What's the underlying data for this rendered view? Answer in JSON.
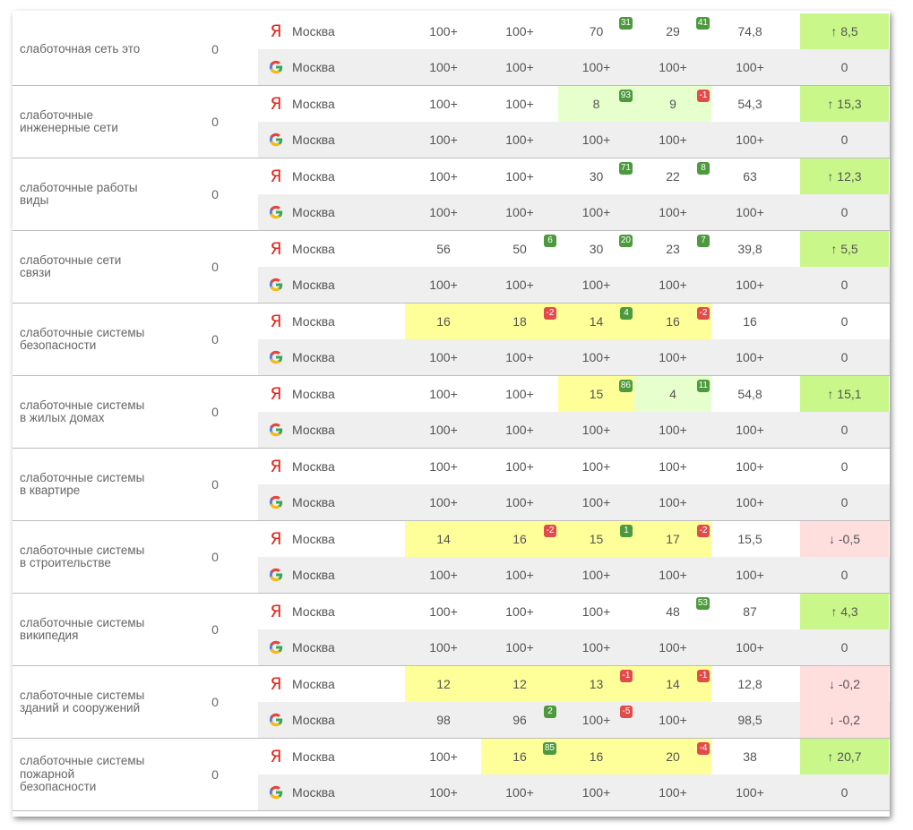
{
  "colors": {
    "yandex_red": "#e8231a",
    "highlight_yellow": "#ffff99",
    "highlight_light_green": "#e6ffcc",
    "delta_green": "#c9f78a",
    "delta_red": "#ffdede",
    "badge_positive": "#4c9a3d",
    "badge_negative": "#e24b4b"
  },
  "icons": {
    "yandex": "yandex-logo-icon",
    "google": "google-logo-icon"
  },
  "groups": [
    {
      "keyword": "слаботочная сеть это",
      "zero": "0",
      "yandex": {
        "city": "Москва",
        "cells": [
          {
            "v": "100+"
          },
          {
            "v": "100+"
          },
          {
            "v": "70",
            "badge": "31",
            "bt": "pos"
          },
          {
            "v": "29",
            "badge": "41",
            "bt": "pos"
          },
          {
            "v": "74,8"
          }
        ],
        "delta": "↑ 8,5",
        "delta_type": "up"
      },
      "google": {
        "city": "Москва",
        "cells": [
          {
            "v": "100+"
          },
          {
            "v": "100+"
          },
          {
            "v": "100+"
          },
          {
            "v": "100+"
          },
          {
            "v": "100+"
          }
        ],
        "delta": "0",
        "delta_type": "none"
      }
    },
    {
      "keyword": "слаботочные\nинженерные сети",
      "zero": "0",
      "yandex": {
        "city": "Москва",
        "cells": [
          {
            "v": "100+"
          },
          {
            "v": "100+"
          },
          {
            "v": "8",
            "badge": "93",
            "bt": "pos",
            "hl": "lg"
          },
          {
            "v": "9",
            "badge": "-1",
            "bt": "neg",
            "hl": "lg"
          },
          {
            "v": "54,3"
          }
        ],
        "delta": "↑ 15,3",
        "delta_type": "up"
      },
      "google": {
        "city": "Москва",
        "cells": [
          {
            "v": "100+"
          },
          {
            "v": "100+"
          },
          {
            "v": "100+"
          },
          {
            "v": "100+"
          },
          {
            "v": "100+"
          }
        ],
        "delta": "0",
        "delta_type": "none"
      }
    },
    {
      "keyword": "слаботочные работы\nвиды",
      "zero": "0",
      "yandex": {
        "city": "Москва",
        "cells": [
          {
            "v": "100+"
          },
          {
            "v": "100+"
          },
          {
            "v": "30",
            "badge": "71",
            "bt": "pos"
          },
          {
            "v": "22",
            "badge": "8",
            "bt": "pos"
          },
          {
            "v": "63"
          }
        ],
        "delta": "↑ 12,3",
        "delta_type": "up"
      },
      "google": {
        "city": "Москва",
        "cells": [
          {
            "v": "100+"
          },
          {
            "v": "100+"
          },
          {
            "v": "100+"
          },
          {
            "v": "100+"
          },
          {
            "v": "100+"
          }
        ],
        "delta": "0",
        "delta_type": "none"
      }
    },
    {
      "keyword": "слаботочные сети\nсвязи",
      "zero": "0",
      "yandex": {
        "city": "Москва",
        "cells": [
          {
            "v": "56"
          },
          {
            "v": "50",
            "badge": "6",
            "bt": "pos"
          },
          {
            "v": "30",
            "badge": "20",
            "bt": "pos"
          },
          {
            "v": "23",
            "badge": "7",
            "bt": "pos"
          },
          {
            "v": "39,8"
          }
        ],
        "delta": "↑ 5,5",
        "delta_type": "up"
      },
      "google": {
        "city": "Москва",
        "cells": [
          {
            "v": "100+"
          },
          {
            "v": "100+"
          },
          {
            "v": "100+"
          },
          {
            "v": "100+"
          },
          {
            "v": "100+"
          }
        ],
        "delta": "0",
        "delta_type": "none"
      }
    },
    {
      "keyword": "слаботочные системы\nбезопасности",
      "zero": "0",
      "yandex": {
        "city": "Москва",
        "cells": [
          {
            "v": "16",
            "hl": "y"
          },
          {
            "v": "18",
            "badge": "-2",
            "bt": "neg",
            "hl": "y"
          },
          {
            "v": "14",
            "badge": "4",
            "bt": "pos",
            "hl": "y"
          },
          {
            "v": "16",
            "badge": "-2",
            "bt": "neg",
            "hl": "y"
          },
          {
            "v": "16"
          }
        ],
        "delta": "0",
        "delta_type": "none"
      },
      "google": {
        "city": "Москва",
        "cells": [
          {
            "v": "100+"
          },
          {
            "v": "100+"
          },
          {
            "v": "100+"
          },
          {
            "v": "100+"
          },
          {
            "v": "100+"
          }
        ],
        "delta": "0",
        "delta_type": "none"
      }
    },
    {
      "keyword": "слаботочные системы\nв жилых домах",
      "zero": "0",
      "yandex": {
        "city": "Москва",
        "cells": [
          {
            "v": "100+"
          },
          {
            "v": "100+"
          },
          {
            "v": "15",
            "badge": "86",
            "bt": "pos",
            "hl": "y"
          },
          {
            "v": "4",
            "badge": "11",
            "bt": "pos",
            "hl": "lg"
          },
          {
            "v": "54,8"
          }
        ],
        "delta": "↑ 15,1",
        "delta_type": "up"
      },
      "google": {
        "city": "Москва",
        "cells": [
          {
            "v": "100+"
          },
          {
            "v": "100+"
          },
          {
            "v": "100+"
          },
          {
            "v": "100+"
          },
          {
            "v": "100+"
          }
        ],
        "delta": "0",
        "delta_type": "none"
      }
    },
    {
      "keyword": "слаботочные системы\nв квартире",
      "zero": "0",
      "yandex": {
        "city": "Москва",
        "cells": [
          {
            "v": "100+"
          },
          {
            "v": "100+"
          },
          {
            "v": "100+"
          },
          {
            "v": "100+"
          },
          {
            "v": "100+"
          }
        ],
        "delta": "0",
        "delta_type": "none"
      },
      "google": {
        "city": "Москва",
        "cells": [
          {
            "v": "100+"
          },
          {
            "v": "100+"
          },
          {
            "v": "100+"
          },
          {
            "v": "100+"
          },
          {
            "v": "100+"
          }
        ],
        "delta": "0",
        "delta_type": "none"
      }
    },
    {
      "keyword": "слаботочные системы\nв строительстве",
      "zero": "0",
      "yandex": {
        "city": "Москва",
        "cells": [
          {
            "v": "14",
            "hl": "y"
          },
          {
            "v": "16",
            "badge": "-2",
            "bt": "neg",
            "hl": "y"
          },
          {
            "v": "15",
            "badge": "1",
            "bt": "pos",
            "hl": "y"
          },
          {
            "v": "17",
            "badge": "-2",
            "bt": "neg",
            "hl": "y"
          },
          {
            "v": "15,5"
          }
        ],
        "delta": "↓ -0,5",
        "delta_type": "down"
      },
      "google": {
        "city": "Москва",
        "cells": [
          {
            "v": "100+"
          },
          {
            "v": "100+"
          },
          {
            "v": "100+"
          },
          {
            "v": "100+"
          },
          {
            "v": "100+"
          }
        ],
        "delta": "0",
        "delta_type": "none"
      }
    },
    {
      "keyword": "слаботочные системы\nвикипедия",
      "zero": "0",
      "yandex": {
        "city": "Москва",
        "cells": [
          {
            "v": "100+"
          },
          {
            "v": "100+"
          },
          {
            "v": "100+"
          },
          {
            "v": "48",
            "badge": "53",
            "bt": "pos"
          },
          {
            "v": "87"
          }
        ],
        "delta": "↑ 4,3",
        "delta_type": "up"
      },
      "google": {
        "city": "Москва",
        "cells": [
          {
            "v": "100+"
          },
          {
            "v": "100+"
          },
          {
            "v": "100+"
          },
          {
            "v": "100+"
          },
          {
            "v": "100+"
          }
        ],
        "delta": "0",
        "delta_type": "none"
      }
    },
    {
      "keyword": "слаботочные системы\nзданий и сооружений",
      "zero": "0",
      "yandex": {
        "city": "Москва",
        "cells": [
          {
            "v": "12",
            "hl": "y"
          },
          {
            "v": "12",
            "hl": "y"
          },
          {
            "v": "13",
            "badge": "-1",
            "bt": "neg",
            "hl": "y"
          },
          {
            "v": "14",
            "badge": "-1",
            "bt": "neg",
            "hl": "y"
          },
          {
            "v": "12,8"
          }
        ],
        "delta": "↓ -0,2",
        "delta_type": "down"
      },
      "google": {
        "city": "Москва",
        "cells": [
          {
            "v": "98"
          },
          {
            "v": "96",
            "badge": "2",
            "bt": "pos"
          },
          {
            "v": "100+",
            "badge": "-5",
            "bt": "neg"
          },
          {
            "v": "100+"
          },
          {
            "v": "98,5"
          }
        ],
        "delta": "↓ -0,2",
        "delta_type": "down"
      }
    },
    {
      "keyword": "слаботочные системы\nпожарной\nбезопасности",
      "zero": "0",
      "yandex": {
        "city": "Москва",
        "cells": [
          {
            "v": "100+"
          },
          {
            "v": "16",
            "badge": "85",
            "bt": "pos",
            "hl": "y"
          },
          {
            "v": "16",
            "hl": "y"
          },
          {
            "v": "20",
            "badge": "-4",
            "bt": "neg",
            "hl": "y"
          },
          {
            "v": "38"
          }
        ],
        "delta": "↑ 20,7",
        "delta_type": "up"
      },
      "google": {
        "city": "Москва",
        "cells": [
          {
            "v": "100+"
          },
          {
            "v": "100+"
          },
          {
            "v": "100+"
          },
          {
            "v": "100+"
          },
          {
            "v": "100+"
          }
        ],
        "delta": "0",
        "delta_type": "none"
      }
    }
  ]
}
